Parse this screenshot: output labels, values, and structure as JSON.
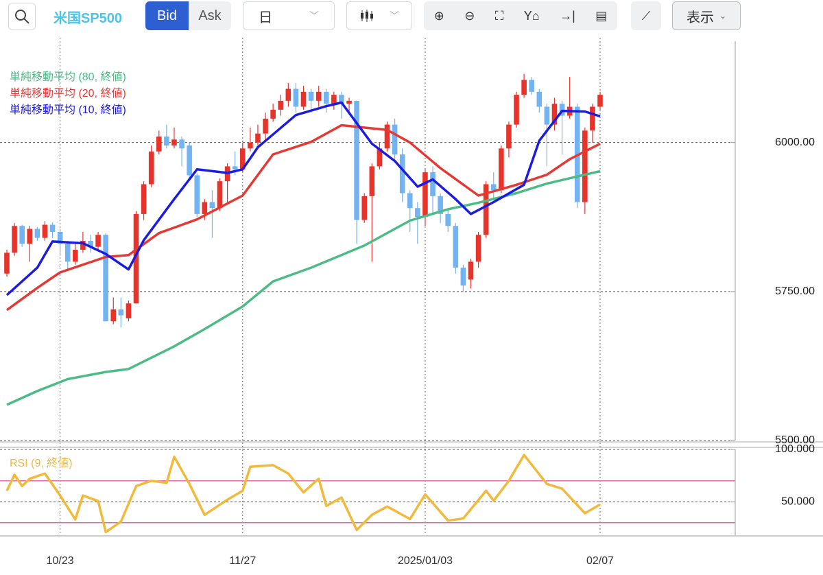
{
  "toolbar": {
    "symbol": "米国SP500",
    "bid": "Bid",
    "ask": "Ask",
    "period": "日",
    "view": "表示"
  },
  "chart_data": [
    {
      "type": "candlestick",
      "categories": [
        null,
        null,
        null,
        null,
        null,
        null,
        null,
        "10/23",
        null,
        null,
        null,
        null,
        null,
        null,
        null,
        null,
        null,
        null,
        null,
        null,
        null,
        null,
        null,
        null,
        null,
        null,
        null,
        null,
        null,
        null,
        null,
        "11/27",
        null,
        null,
        null,
        null,
        null,
        null,
        null,
        null,
        null,
        null,
        null,
        null,
        null,
        null,
        null,
        null,
        null,
        null,
        null,
        null,
        null,
        null,
        null,
        "2025/01/03",
        null,
        null,
        null,
        null,
        null,
        null,
        null,
        null,
        null,
        null,
        null,
        null,
        null,
        null,
        null,
        null,
        null,
        null,
        null,
        null,
        null,
        null,
        "02/07"
      ],
      "open": [
        5780,
        5815,
        5860,
        5830,
        5855,
        5840,
        5862,
        5850,
        5830,
        5800,
        5820,
        5835,
        5825,
        5845,
        5700,
        5720,
        5705,
        5730,
        5880,
        5930,
        5985,
        6010,
        5995,
        6005,
        5995,
        5945,
        5880,
        5900,
        5890,
        5935,
        5960,
        5955,
        5990,
        6000,
        6015,
        6040,
        6055,
        6070,
        6090,
        6060,
        6085,
        6070,
        6085,
        6065,
        6080,
        6065,
        6070,
        5870,
        5910,
        5960,
        5990,
        6030,
        5980,
        5915,
        5890,
        5875,
        5950,
        5910,
        5880,
        5860,
        5790,
        5770,
        5800,
        5845,
        5930,
        5920,
        5990,
        6030,
        6080,
        6105,
        6085,
        6060,
        6030,
        6065,
        6045,
        6060,
        5900,
        6020,
        6060
      ],
      "high": [
        5820,
        5865,
        5862,
        5860,
        5858,
        5868,
        5866,
        5855,
        5835,
        5830,
        5850,
        5845,
        5850,
        5848,
        5740,
        5740,
        5735,
        5885,
        5935,
        5995,
        6020,
        6030,
        6025,
        6010,
        6000,
        5948,
        5905,
        5920,
        5940,
        5965,
        5985,
        6000,
        6025,
        6030,
        6050,
        6065,
        6080,
        6100,
        6100,
        6095,
        6090,
        6095,
        6090,
        6085,
        6085,
        6075,
        6070,
        5915,
        5965,
        6000,
        6035,
        6040,
        5990,
        5920,
        5900,
        5955,
        5960,
        5915,
        5890,
        5865,
        5795,
        5805,
        5850,
        5935,
        5950,
        5995,
        6035,
        6085,
        6115,
        6110,
        6090,
        6065,
        6075,
        6070,
        6110,
        6065,
        6025,
        6065,
        6085
      ],
      "low": [
        5775,
        5810,
        5825,
        5800,
        5835,
        5835,
        5840,
        5810,
        5785,
        5795,
        5815,
        5815,
        5820,
        5700,
        5695,
        5690,
        5700,
        5730,
        5870,
        5925,
        5980,
        5990,
        5990,
        5960,
        5940,
        5875,
        5870,
        5840,
        5885,
        5900,
        5945,
        5950,
        5985,
        5995,
        6005,
        6035,
        6045,
        6060,
        6050,
        6055,
        6050,
        6060,
        6050,
        6055,
        6040,
        6050,
        5830,
        5865,
        5800,
        5955,
        5985,
        5970,
        5900,
        5850,
        5830,
        5860,
        5880,
        5865,
        5850,
        5780,
        5750,
        5755,
        5790,
        5840,
        5905,
        5915,
        5975,
        6025,
        6075,
        6080,
        6050,
        5960,
        6020,
        5980,
        6040,
        5890,
        5880,
        6000,
        6055
      ],
      "close": [
        5815,
        5860,
        5830,
        5855,
        5840,
        5862,
        5850,
        5830,
        5800,
        5820,
        5835,
        5825,
        5845,
        5700,
        5720,
        5710,
        5730,
        5880,
        5930,
        5985,
        6010,
        5995,
        6005,
        5990,
        5945,
        5880,
        5900,
        5890,
        5935,
        5960,
        5955,
        5990,
        6000,
        6015,
        6040,
        6055,
        6070,
        6090,
        6060,
        6085,
        6070,
        6085,
        6065,
        6080,
        6065,
        6070,
        5870,
        5910,
        5960,
        5990,
        6030,
        5980,
        5915,
        5890,
        5875,
        5950,
        5910,
        5880,
        5860,
        5790,
        5760,
        5800,
        5845,
        5930,
        5920,
        5990,
        6030,
        6080,
        6105,
        6085,
        6060,
        6030,
        6065,
        6045,
        6060,
        5900,
        6020,
        6060,
        6080
      ],
      "up_color": "#e8332a",
      "down_color": "#74b3f2",
      "series": [
        {
          "name": "単純移動平均 (80, 終値)",
          "color": "#4cbb86",
          "x": [
            0,
            4,
            8,
            13,
            16,
            22,
            26,
            31,
            35,
            40,
            47,
            53,
            58,
            62,
            67,
            71,
            78
          ],
          "values": [
            5560,
            5583,
            5603,
            5615,
            5620,
            5658,
            5687,
            5725,
            5767,
            5790,
            5827,
            5869,
            5888,
            5899,
            5915,
            5931,
            5952
          ]
        },
        {
          "name": "単純移動平均 (20, 終値)",
          "color": "#e53935",
          "x": [
            0,
            4,
            7,
            13,
            16,
            20,
            25,
            31,
            35,
            40,
            44,
            50,
            53,
            57,
            62,
            67,
            71,
            74,
            78
          ],
          "values": [
            5719,
            5756,
            5782,
            5808,
            5811,
            5848,
            5871,
            5911,
            5980,
            6001,
            6029,
            6021,
            6000,
            5957,
            5911,
            5929,
            5946,
            5972,
            5998
          ]
        },
        {
          "name": "単純移動平均 (10, 終値)",
          "color": "#1c1ce0",
          "x": [
            0,
            4,
            6,
            10,
            13,
            16,
            18,
            22,
            25,
            29,
            31,
            33,
            38,
            42,
            44,
            48,
            51,
            54,
            56,
            59,
            61,
            64,
            68,
            70,
            73,
            76,
            78
          ],
          "values": [
            5744,
            5790,
            5834,
            5831,
            5813,
            5787,
            5836,
            5905,
            5955,
            5949,
            5955,
            5992,
            6046,
            6061,
            6067,
            5998,
            5969,
            5926,
            5938,
            5905,
            5880,
            5900,
            5929,
            6003,
            6053,
            6052,
            6044
          ]
        }
      ],
      "ylim": [
        5500,
        6170
      ],
      "yticks": [
        {
          "value": 5500,
          "label": "5500.00"
        },
        {
          "value": 5750,
          "label": "5750.00"
        },
        {
          "value": 6000,
          "label": "6000.00"
        }
      ],
      "grid": true
    },
    {
      "type": "line",
      "series": [
        {
          "name": "RSI (9, 終値)",
          "color": "#f2b93b",
          "x": [
            0,
            1,
            2,
            3,
            5,
            7,
            9,
            10,
            12,
            13,
            15,
            17,
            19,
            21,
            22,
            24,
            26,
            29,
            31,
            32,
            35,
            37,
            39,
            41,
            42,
            44,
            46,
            48,
            50,
            53,
            55,
            58,
            60,
            63,
            64,
            66,
            68,
            71,
            73,
            76,
            78
          ],
          "values": [
            60.5,
            75.7,
            65,
            72,
            77,
            56,
            33,
            56,
            50.7,
            21,
            31,
            65,
            70,
            68,
            93,
            67,
            37.5,
            52,
            60.5,
            83.5,
            85,
            77,
            59,
            72,
            46,
            54,
            23,
            37.5,
            45.4,
            33.5,
            57,
            32,
            34,
            60.5,
            51,
            70,
            94.7,
            67,
            62.5,
            39,
            47.4
          ]
        }
      ],
      "levels": [
        70,
        30
      ],
      "level_color": "#e06aa8",
      "ylim": [
        18,
        100
      ],
      "yticks": [
        {
          "value": 50,
          "label": "50.000"
        },
        {
          "value": 100,
          "label": "100.000"
        }
      ],
      "grid": true
    }
  ]
}
